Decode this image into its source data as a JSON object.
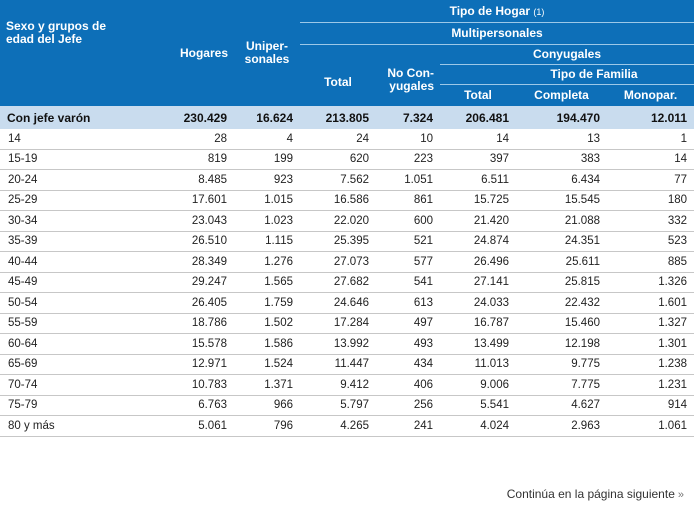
{
  "header": {
    "sexo": "Sexo y grupos de edad del Jefe",
    "hogares": "Hogares",
    "unipersonales": "Uniper-sonales",
    "tipo_hogar": "Tipo de Hogar",
    "tipo_hogar_note": "(1)",
    "multipersonales": "Multipersonales",
    "conyugales": "Conyugales",
    "tipo_familia": "Tipo de Familia",
    "total": "Total",
    "no_conyugales": "No Con-yugales",
    "total_conyugales": "Total",
    "completa": "Completa",
    "monopar": "Monopar."
  },
  "summary": {
    "label": "Con jefe varón",
    "values": [
      "230.429",
      "16.624",
      "213.805",
      "7.324",
      "206.481",
      "194.470",
      "12.011"
    ]
  },
  "rows": [
    {
      "label": "14",
      "values": [
        "28",
        "4",
        "24",
        "10",
        "14",
        "13",
        "1"
      ]
    },
    {
      "label": "15-19",
      "values": [
        "819",
        "199",
        "620",
        "223",
        "397",
        "383",
        "14"
      ]
    },
    {
      "label": "20-24",
      "values": [
        "8.485",
        "923",
        "7.562",
        "1.051",
        "6.511",
        "6.434",
        "77"
      ]
    },
    {
      "label": "25-29",
      "values": [
        "17.601",
        "1.015",
        "16.586",
        "861",
        "15.725",
        "15.545",
        "180"
      ]
    },
    {
      "label": "30-34",
      "values": [
        "23.043",
        "1.023",
        "22.020",
        "600",
        "21.420",
        "21.088",
        "332"
      ]
    },
    {
      "label": "35-39",
      "values": [
        "26.510",
        "1.115",
        "25.395",
        "521",
        "24.874",
        "24.351",
        "523"
      ]
    },
    {
      "label": "40-44",
      "values": [
        "28.349",
        "1.276",
        "27.073",
        "577",
        "26.496",
        "25.611",
        "885"
      ]
    },
    {
      "label": "45-49",
      "values": [
        "29.247",
        "1.565",
        "27.682",
        "541",
        "27.141",
        "25.815",
        "1.326"
      ]
    },
    {
      "label": "50-54",
      "values": [
        "26.405",
        "1.759",
        "24.646",
        "613",
        "24.033",
        "22.432",
        "1.601"
      ]
    },
    {
      "label": "55-59",
      "values": [
        "18.786",
        "1.502",
        "17.284",
        "497",
        "16.787",
        "15.460",
        "1.327"
      ]
    },
    {
      "label": "60-64",
      "values": [
        "15.578",
        "1.586",
        "13.992",
        "493",
        "13.499",
        "12.198",
        "1.301"
      ]
    },
    {
      "label": "65-69",
      "values": [
        "12.971",
        "1.524",
        "11.447",
        "434",
        "11.013",
        "9.775",
        "1.238"
      ]
    },
    {
      "label": "70-74",
      "values": [
        "10.783",
        "1.371",
        "9.412",
        "406",
        "9.006",
        "7.775",
        "1.231"
      ]
    },
    {
      "label": "75-79",
      "values": [
        "6.763",
        "966",
        "5.797",
        "256",
        "5.541",
        "4.627",
        "914"
      ]
    },
    {
      "label": "80 y más",
      "values": [
        "5.061",
        "796",
        "4.265",
        "241",
        "4.024",
        "2.963",
        "1.061"
      ]
    }
  ],
  "footer": {
    "continua": "Continúa en la página siguiente",
    "arrow_icon": "double-chevron-right-icon"
  },
  "colors": {
    "header_bg": "#0d6fb8",
    "summary_bg": "#c9dcee",
    "header_text": "#ffffff"
  }
}
